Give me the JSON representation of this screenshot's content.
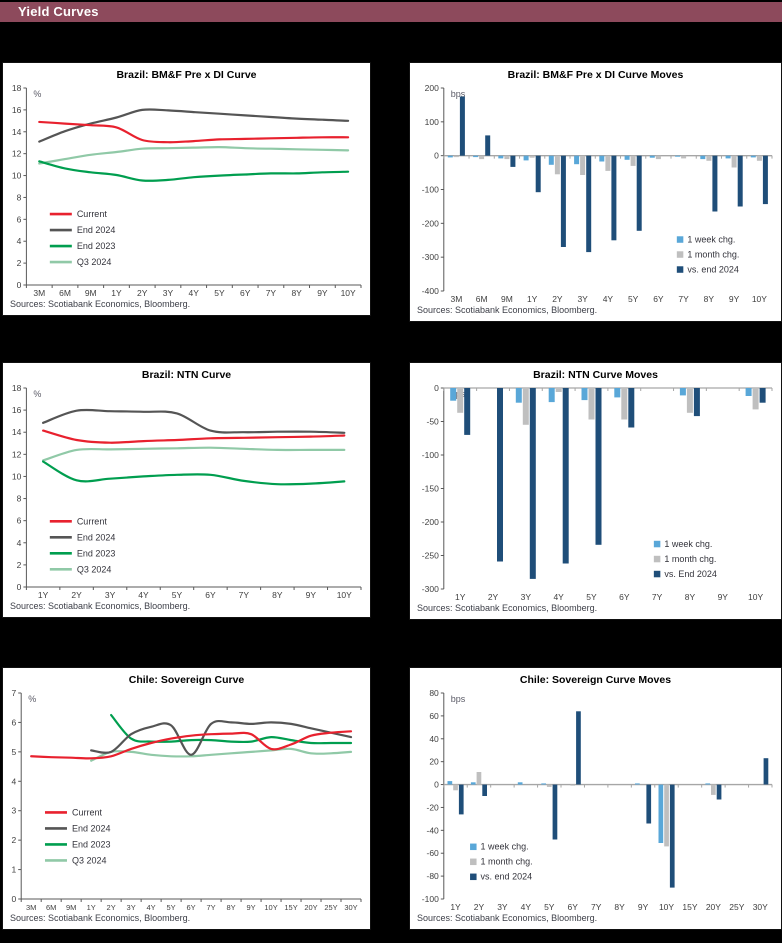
{
  "header": {
    "title": "Yield Curves",
    "bg_color": "#8D4A5C",
    "text_color": "#FFFFFF"
  },
  "sources_note": "Sources: Scotiabank Economics, Bloomberg.",
  "palette": {
    "current_red": "#E8212E",
    "end2024_gray": "#555555",
    "end2023_green": "#009E4F",
    "q32024_light_green": "#90C9A7",
    "week_blue": "#59A7D8",
    "month_gray": "#BFBFBF",
    "vs_end_navy": "#1F4E79"
  },
  "chart_data": [
    {
      "type": "line",
      "title": "Brazil: BM&F Pre x DI Curve",
      "unit": "%",
      "ylim": [
        0,
        18
      ],
      "ytick_step": 2,
      "categories": [
        "3M",
        "6M",
        "9M",
        "1Y",
        "2Y",
        "3Y",
        "4Y",
        "5Y",
        "6Y",
        "7Y",
        "8Y",
        "9Y",
        "10Y"
      ],
      "series": [
        {
          "name": "Current",
          "color": "#E8212E",
          "values": [
            14.9,
            14.75,
            14.6,
            14.4,
            13.25,
            13.05,
            13.15,
            13.3,
            13.35,
            13.4,
            13.45,
            13.5,
            13.5
          ]
        },
        {
          "name": "End 2024",
          "color": "#555555",
          "values": [
            13.1,
            14.05,
            14.75,
            15.3,
            16.0,
            15.95,
            15.8,
            15.65,
            15.5,
            15.35,
            15.2,
            15.1,
            15.0
          ]
        },
        {
          "name": "End 2023",
          "color": "#009E4F",
          "values": [
            11.3,
            10.65,
            10.3,
            10.05,
            9.55,
            9.6,
            9.85,
            10.0,
            10.1,
            10.2,
            10.2,
            10.3,
            10.35
          ]
        },
        {
          "name": "Q3 2024",
          "color": "#90C9A7",
          "values": [
            11.1,
            11.5,
            11.9,
            12.15,
            12.45,
            12.5,
            12.55,
            12.6,
            12.5,
            12.45,
            12.4,
            12.35,
            12.3
          ]
        }
      ],
      "legend_anchor": [
        0.07,
        0.64
      ],
      "sources": "Sources: Scotiabank Economics, Bloomberg."
    },
    {
      "type": "bar",
      "title": "Brazil: BM&F Pre x DI Curve Moves",
      "unit": "bps",
      "ylim": [
        -400,
        200
      ],
      "ytick_step": 100,
      "categories": [
        "3M",
        "6M",
        "9M",
        "1Y",
        "2Y",
        "3Y",
        "4Y",
        "5Y",
        "6Y",
        "7Y",
        "8Y",
        "9Y",
        "10Y"
      ],
      "series": [
        {
          "name": "1 week chg.",
          "color": "#59A7D8",
          "values": [
            -5,
            -4,
            -8,
            -14,
            -27,
            -25,
            -17,
            -12,
            -6,
            -3,
            -10,
            -8,
            -5
          ]
        },
        {
          "name": "1 month chg.",
          "color": "#BFBFBF",
          "values": [
            -4,
            -10,
            -10,
            -6,
            -55,
            -57,
            -45,
            -30,
            -10,
            -8,
            -15,
            -35,
            -15
          ]
        },
        {
          "name": "vs. end 2024",
          "color": "#1F4E79",
          "values": [
            175,
            60,
            -33,
            -108,
            -270,
            -285,
            -250,
            -222,
            0,
            0,
            -165,
            -150,
            -143
          ]
        }
      ],
      "legend_anchor": [
        0.71,
        0.76
      ],
      "sources": "Sources: Scotiabank Economics, Bloomberg."
    },
    {
      "type": "line",
      "title": "Brazil: NTN Curve",
      "unit": "%",
      "ylim": [
        0,
        18
      ],
      "ytick_step": 2,
      "categories": [
        "1Y",
        "2Y",
        "3Y",
        "4Y",
        "5Y",
        "6Y",
        "7Y",
        "8Y",
        "9Y",
        "10Y"
      ],
      "series": [
        {
          "name": "Current",
          "color": "#E8212E",
          "values": [
            14.15,
            13.3,
            13.05,
            13.2,
            13.3,
            13.45,
            13.5,
            13.55,
            13.6,
            13.7
          ]
        },
        {
          "name": "End 2024",
          "color": "#555555",
          "values": [
            14.85,
            15.95,
            15.9,
            15.85,
            15.7,
            14.15,
            14.0,
            14.05,
            14.05,
            13.95
          ]
        },
        {
          "name": "End 2023",
          "color": "#009E4F",
          "values": [
            11.35,
            9.65,
            9.8,
            10.0,
            10.15,
            10.15,
            9.6,
            9.3,
            9.35,
            9.55
          ]
        },
        {
          "name": "Q3 2024",
          "color": "#90C9A7",
          "values": [
            11.45,
            12.4,
            12.45,
            12.5,
            12.55,
            12.6,
            12.5,
            12.4,
            12.4,
            12.4
          ]
        }
      ],
      "legend_anchor": [
        0.07,
        0.67
      ],
      "sources": "Sources: Scotiabank Economics, Bloomberg."
    },
    {
      "type": "bar",
      "title": "Brazil: NTN Curve Moves",
      "unit": "bps",
      "ylim": [
        -300,
        0
      ],
      "ytick_step": 50,
      "categories": [
        "1Y",
        "2Y",
        "3Y",
        "4Y",
        "5Y",
        "6Y",
        "7Y",
        "8Y",
        "9Y",
        "10Y"
      ],
      "series": [
        {
          "name": "1 week chg.",
          "color": "#59A7D8",
          "values": [
            -19,
            0,
            -22,
            -21,
            -18,
            -14,
            0,
            -11,
            0,
            -12
          ]
        },
        {
          "name": "1 month chg.",
          "color": "#BFBFBF",
          "values": [
            -37,
            0,
            -55,
            -6,
            -47,
            -47,
            0,
            -37,
            0,
            -32
          ]
        },
        {
          "name": "vs. End 2024",
          "color": "#1F4E79",
          "values": [
            -70,
            -259,
            -285,
            -262,
            -234,
            -59,
            0,
            -42,
            0,
            -22
          ]
        }
      ],
      "legend_anchor": [
        0.64,
        0.79
      ],
      "sources": "Sources: Scotiabank Economics, Bloomberg."
    },
    {
      "type": "line",
      "title": "Chile: Sovereign Curve",
      "unit": "%",
      "ylim": [
        0,
        7
      ],
      "ytick_step": 1,
      "categories": [
        "3M",
        "6M",
        "9M",
        "1Y",
        "2Y",
        "3Y",
        "4Y",
        "5Y",
        "6Y",
        "7Y",
        "8Y",
        "9Y",
        "10Y",
        "15Y",
        "20Y",
        "25Y",
        "30Y"
      ],
      "series": [
        {
          "name": "Current",
          "color": "#E8212E",
          "values": [
            4.85,
            4.82,
            4.8,
            4.78,
            4.85,
            5.1,
            5.3,
            5.45,
            5.55,
            5.6,
            5.62,
            5.6,
            5.1,
            5.25,
            5.55,
            5.65,
            5.7
          ]
        },
        {
          "name": "End 2024",
          "color": "#555555",
          "values": [
            null,
            null,
            null,
            5.05,
            5.0,
            5.6,
            5.85,
            5.9,
            4.9,
            5.95,
            6.0,
            5.95,
            6.0,
            5.95,
            5.8,
            5.65,
            5.5
          ]
        },
        {
          "name": "End 2023",
          "color": "#009E4F",
          "values": [
            null,
            null,
            null,
            null,
            6.25,
            5.45,
            5.35,
            5.35,
            5.4,
            5.4,
            5.35,
            5.35,
            5.5,
            5.4,
            5.3,
            5.3,
            5.3
          ]
        },
        {
          "name": "Q3 2024",
          "color": "#90C9A7",
          "values": [
            null,
            null,
            null,
            4.7,
            5.0,
            5.0,
            4.9,
            4.85,
            4.85,
            4.9,
            4.95,
            5.0,
            5.05,
            5.1,
            4.95,
            4.95,
            5.0
          ]
        }
      ],
      "legend_anchor": [
        0.07,
        0.58
      ],
      "sources": "Sources: Scotiabank Economics, Bloomberg."
    },
    {
      "type": "bar",
      "title": "Chile: Sovereign Curve Moves",
      "unit": "bps",
      "ylim": [
        -100,
        80
      ],
      "ytick_step": 20,
      "categories": [
        "1Y",
        "2Y",
        "3Y",
        "4Y",
        "5Y",
        "6Y",
        "7Y",
        "8Y",
        "9Y",
        "10Y",
        "15Y",
        "20Y",
        "25Y",
        "30Y"
      ],
      "series": [
        {
          "name": "1 week chg.",
          "color": "#59A7D8",
          "values": [
            3,
            2,
            0,
            2,
            1,
            0,
            0,
            0,
            1,
            -51,
            0,
            1,
            0,
            0
          ]
        },
        {
          "name": "1 month chg.",
          "color": "#BFBFBF",
          "values": [
            -5,
            11,
            0,
            0,
            -2,
            -1,
            0,
            0,
            0,
            -54,
            0,
            -9,
            0,
            0
          ]
        },
        {
          "name": "vs. end 2024",
          "color": "#1F4E79",
          "values": [
            -26,
            -10,
            0,
            0,
            -48,
            64,
            0,
            0,
            -34,
            -90,
            0,
            -13,
            0,
            23
          ]
        }
      ],
      "legend_anchor": [
        0.08,
        0.76
      ],
      "sources": "Sources: Scotiabank Economics, Bloomberg."
    }
  ]
}
